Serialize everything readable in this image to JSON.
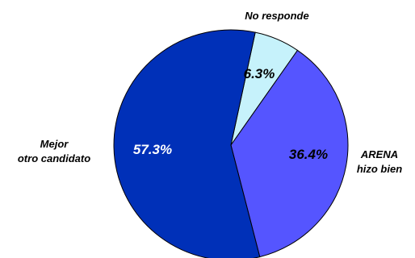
{
  "chart_data": {
    "type": "pie",
    "title": "",
    "start_angle_deg": 12,
    "direction": "clockwise",
    "slices": [
      {
        "label_lines": [
          "No responde"
        ],
        "value": 6.3,
        "value_label": "6.3%",
        "color": "#C6F2FB",
        "value_label_color": "#000000"
      },
      {
        "label_lines": [
          "ARENA",
          "hizo bien"
        ],
        "value": 36.4,
        "value_label": "36.4%",
        "color": "#5555FF",
        "value_label_color": "#000000"
      },
      {
        "label_lines": [
          "Mejor",
          "otro candidato"
        ],
        "value": 57.3,
        "value_label": "57.3%",
        "color": "#0030B8",
        "value_label_color": "#FFFFFF"
      }
    ]
  }
}
